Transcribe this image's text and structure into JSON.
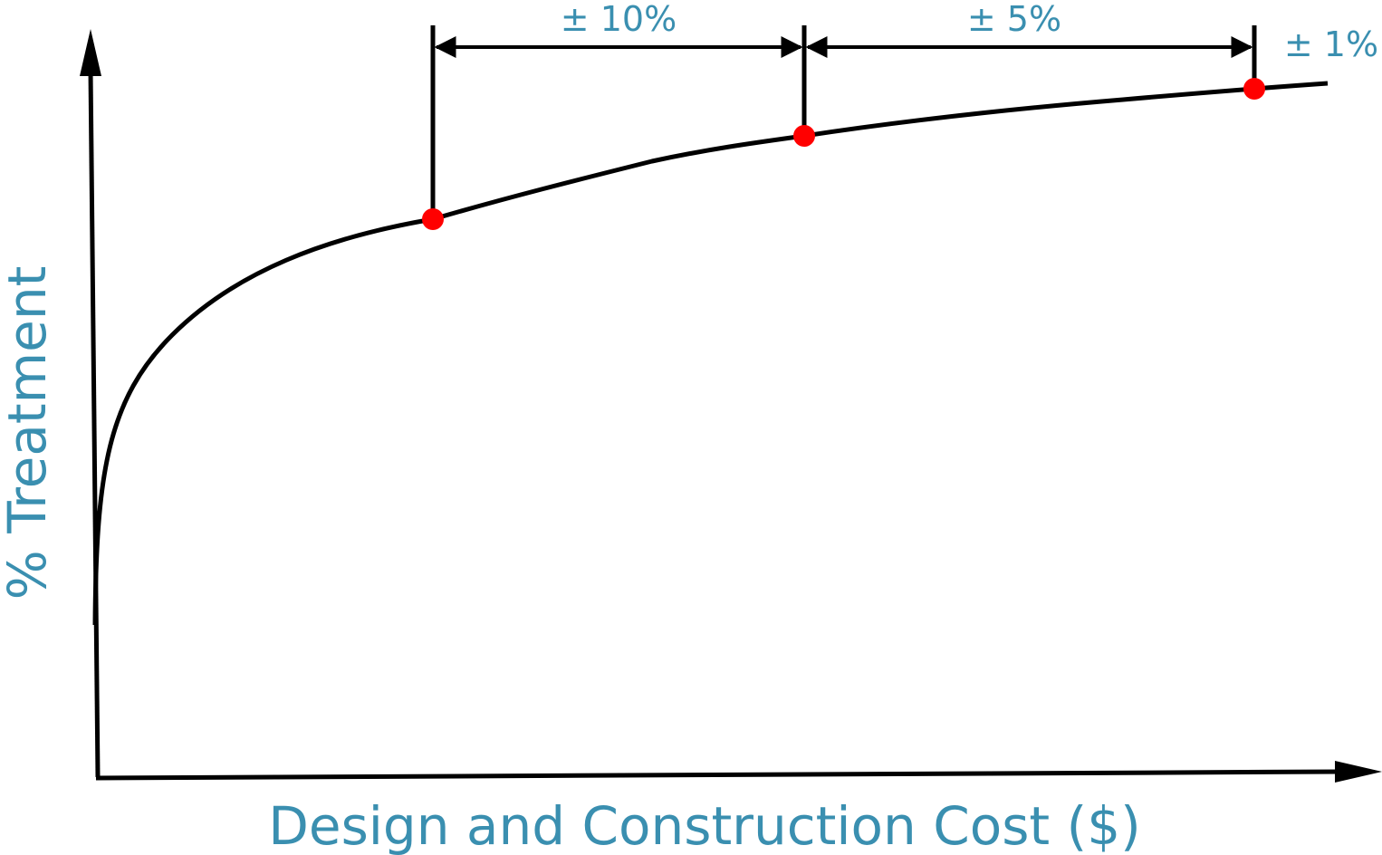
{
  "colors": {
    "label": "#3a8fb0",
    "curve": "#000000",
    "marker": "#ff0000",
    "background": "#ffffff"
  },
  "axes": {
    "x_label": "Design and Construction Cost ($)",
    "y_label": "% Treatment"
  },
  "accuracy_bands": [
    {
      "label": "± 10%"
    },
    {
      "label": "± 5%"
    },
    {
      "label": "± 1%"
    }
  ],
  "markers": [
    {
      "name": "marker-1"
    },
    {
      "name": "marker-2"
    },
    {
      "name": "marker-3"
    }
  ]
}
